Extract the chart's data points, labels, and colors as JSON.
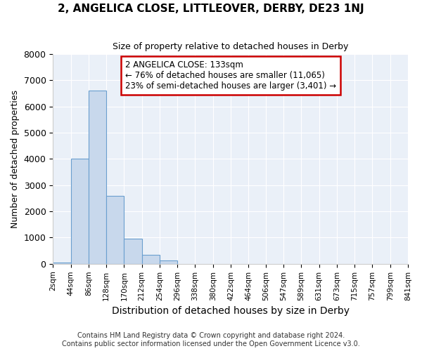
{
  "title": "2, ANGELICA CLOSE, LITTLEOVER, DERBY, DE23 1NJ",
  "subtitle": "Size of property relative to detached houses in Derby",
  "xlabel": "Distribution of detached houses by size in Derby",
  "ylabel": "Number of detached properties",
  "bar_color": "#c8d8ec",
  "bar_edge_color": "#6a9fcf",
  "background_color": "#eaf0f8",
  "bin_edges": [
    2,
    44,
    86,
    128,
    170,
    212,
    254,
    296,
    338,
    380,
    422,
    464,
    506,
    547,
    589,
    631,
    673,
    715,
    757,
    799,
    841
  ],
  "bar_heights": [
    60,
    4000,
    6600,
    2600,
    960,
    330,
    130,
    0,
    0,
    0,
    0,
    0,
    0,
    0,
    0,
    0,
    0,
    0,
    0,
    0
  ],
  "property_size": 133,
  "vline_color": "#cc0000",
  "annotation_text": "2 ANGELICA CLOSE: 133sqm\n← 76% of detached houses are smaller (11,065)\n23% of semi-detached houses are larger (3,401) →",
  "annotation_box_color": "#ffffff",
  "annotation_border_color": "#cc0000",
  "footer": "Contains HM Land Registry data © Crown copyright and database right 2024.\nContains public sector information licensed under the Open Government Licence v3.0.",
  "ylim": [
    0,
    8000
  ],
  "yticks": [
    0,
    1000,
    2000,
    3000,
    4000,
    5000,
    6000,
    7000,
    8000
  ]
}
